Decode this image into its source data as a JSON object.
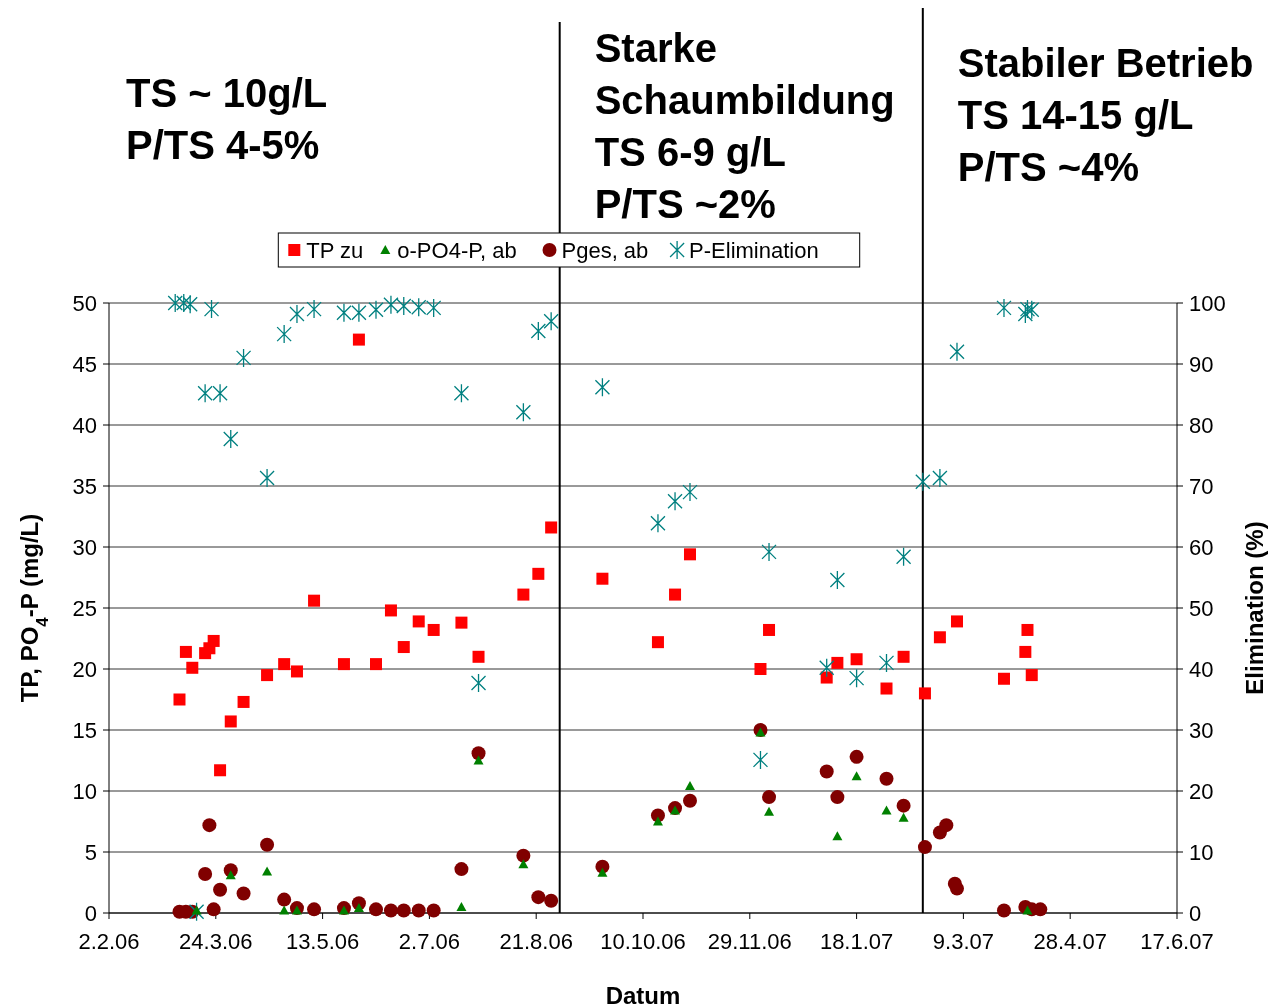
{
  "chart_data": {
    "type": "scatter",
    "xlabel": "Datum",
    "ylabel": "TP, PO$_{4}$-P (mg/L)",
    "y2label": "Elimination (%)",
    "xlim": [
      "2006-02-02",
      "2007-06-17"
    ],
    "xticks": [
      {
        "value": "2006-02-02",
        "label": "2.2.06"
      },
      {
        "value": "2006-03-24",
        "label": "24.3.06"
      },
      {
        "value": "2006-05-13",
        "label": "13.5.06"
      },
      {
        "value": "2006-07-02",
        "label": "2.7.06"
      },
      {
        "value": "2006-08-21",
        "label": "21.8.06"
      },
      {
        "value": "2006-10-10",
        "label": "10.10.06"
      },
      {
        "value": "2006-11-29",
        "label": "29.11.06"
      },
      {
        "value": "2007-01-18",
        "label": "18.1.07"
      },
      {
        "value": "2007-03-09",
        "label": "9.3.07"
      },
      {
        "value": "2007-04-28",
        "label": "28.4.07"
      },
      {
        "value": "2007-06-17",
        "label": "17.6.07"
      }
    ],
    "ylim": [
      0,
      50
    ],
    "yticks": [
      0,
      5,
      10,
      15,
      20,
      25,
      30,
      35,
      40,
      45,
      50
    ],
    "y2lim": [
      0,
      100
    ],
    "y2ticks": [
      0,
      10,
      20,
      30,
      40,
      50,
      60,
      70,
      80,
      90,
      100
    ],
    "grid": "y",
    "legend": "top",
    "ref_lines": [
      {
        "axis": "x",
        "value": "2006-09-01",
        "color": "#000000",
        "line_style": "solid"
      },
      {
        "axis": "x",
        "value": "2007-02-18",
        "color": "#000000",
        "line_style": "solid"
      }
    ],
    "annotations": [
      "TS ~ 10g/L\nP/TS 4-5%",
      "Starke\nSchaumbildung\nTS 6-9 g/L\nP/TS ~2%",
      "Stabiler Betrieb\nTS 14-15 g/L\nP/TS ~4%"
    ],
    "series": [
      {
        "name": "TP zu",
        "color": "#ff0000",
        "marker": "square",
        "x": [
          "2006-03-07",
          "2006-03-10",
          "2006-03-13",
          "2006-03-19",
          "2006-03-21",
          "2006-03-23",
          "2006-03-26",
          "2006-03-31",
          "2006-04-06",
          "2006-04-17",
          "2006-04-25",
          "2006-05-01",
          "2006-05-09",
          "2006-05-23",
          "2006-05-30",
          "2006-06-07",
          "2006-06-14",
          "2006-06-20",
          "2006-06-27",
          "2006-07-04",
          "2006-07-17",
          "2006-07-25",
          "2006-08-15",
          "2006-08-22",
          "2006-08-28",
          "2006-09-21",
          "2006-10-17",
          "2006-10-25",
          "2006-11-01",
          "2006-12-04",
          "2006-12-08",
          "2007-01-04",
          "2007-01-09",
          "2007-01-18",
          "2007-02-01",
          "2007-02-09",
          "2007-02-19",
          "2007-02-26",
          "2007-03-06",
          "2007-03-28",
          "2007-04-07",
          "2007-04-08",
          "2007-04-10"
        ],
        "values": [
          17.5,
          21.4,
          20.1,
          21.3,
          21.7,
          22.3,
          11.7,
          15.7,
          17.3,
          19.5,
          20.4,
          19.8,
          25.6,
          20.4,
          47.0,
          20.4,
          24.8,
          21.8,
          23.9,
          23.2,
          23.8,
          21.0,
          26.1,
          27.8,
          31.6,
          27.4,
          22.2,
          26.1,
          29.4,
          20.0,
          23.2,
          19.3,
          20.5,
          20.8,
          18.4,
          21.0,
          18.0,
          22.6,
          23.9,
          19.2,
          21.4,
          23.2,
          19.5
        ]
      },
      {
        "name": "o-PO4-P, ab",
        "color": "#008000",
        "marker": "triangle",
        "x": [
          "2006-03-15",
          "2006-03-31",
          "2006-04-17",
          "2006-04-25",
          "2006-05-01",
          "2006-05-23",
          "2006-05-30",
          "2006-07-17",
          "2006-07-25",
          "2006-08-15",
          "2006-09-21",
          "2006-10-17",
          "2006-10-25",
          "2006-11-01",
          "2006-12-04",
          "2006-12-08",
          "2007-01-09",
          "2007-01-18",
          "2007-02-01",
          "2007-02-09",
          "2007-04-08"
        ],
        "values": [
          0.2,
          3.1,
          3.4,
          0.2,
          0.2,
          0.2,
          0.4,
          0.5,
          12.5,
          4.0,
          3.3,
          7.5,
          8.4,
          10.4,
          14.8,
          8.3,
          6.3,
          11.2,
          8.4,
          7.8,
          0.2
        ]
      },
      {
        "name": "Pges, ab",
        "color": "#800000",
        "marker": "circle",
        "x": [
          "2006-03-07",
          "2006-03-10",
          "2006-03-13",
          "2006-03-19",
          "2006-03-21",
          "2006-03-23",
          "2006-03-26",
          "2006-03-31",
          "2006-04-06",
          "2006-04-17",
          "2006-04-25",
          "2006-05-01",
          "2006-05-09",
          "2006-05-23",
          "2006-05-30",
          "2006-06-07",
          "2006-06-14",
          "2006-06-20",
          "2006-06-27",
          "2006-07-04",
          "2006-07-17",
          "2006-07-25",
          "2006-08-15",
          "2006-08-22",
          "2006-08-28",
          "2006-09-21",
          "2006-10-17",
          "2006-10-25",
          "2006-11-01",
          "2006-12-04",
          "2006-12-08",
          "2007-01-04",
          "2007-01-09",
          "2007-01-18",
          "2007-02-01",
          "2007-02-09",
          "2007-02-19",
          "2007-02-26",
          "2007-03-01",
          "2007-03-05",
          "2007-03-06",
          "2007-03-28",
          "2007-04-07",
          "2007-04-10",
          "2007-04-14"
        ],
        "values": [
          0.1,
          0.1,
          0.1,
          3.2,
          7.2,
          0.3,
          1.9,
          3.5,
          1.6,
          5.6,
          1.1,
          0.4,
          0.3,
          0.4,
          0.8,
          0.3,
          0.2,
          0.2,
          0.2,
          0.2,
          3.6,
          13.1,
          4.7,
          1.3,
          1.0,
          3.8,
          8.0,
          8.6,
          9.2,
          15.0,
          9.5,
          11.6,
          9.5,
          12.8,
          11.0,
          8.8,
          5.4,
          6.6,
          7.2,
          2.4,
          2.0,
          0.2,
          0.5,
          0.3,
          0.3
        ]
      },
      {
        "name": "P-Elimination",
        "color": "#008080",
        "marker": "cross",
        "axis": "y2",
        "x": [
          "2006-03-05",
          "2006-03-09",
          "2006-03-12",
          "2006-03-15",
          "2006-03-19",
          "2006-03-22",
          "2006-03-26",
          "2006-03-31",
          "2006-04-06",
          "2006-04-17",
          "2006-04-25",
          "2006-05-01",
          "2006-05-09",
          "2006-05-23",
          "2006-05-30",
          "2006-06-07",
          "2006-06-14",
          "2006-06-20",
          "2006-06-27",
          "2006-07-04",
          "2006-07-17",
          "2006-07-25",
          "2006-08-15",
          "2006-08-22",
          "2006-08-28",
          "2006-09-21",
          "2006-10-17",
          "2006-10-25",
          "2006-11-01",
          "2006-12-04",
          "2006-12-08",
          "2007-01-04",
          "2007-01-09",
          "2007-01-18",
          "2007-02-01",
          "2007-02-09",
          "2007-02-18",
          "2007-02-26",
          "2007-03-06",
          "2007-03-28",
          "2007-04-07",
          "2007-04-08",
          "2007-04-10"
        ],
        "values": [
          100,
          100,
          99.8,
          0.2,
          85.2,
          99,
          85.2,
          77.7,
          91.0,
          71.3,
          94.9,
          98.2,
          99,
          98.4,
          98.4,
          98.9,
          99.7,
          99.5,
          99.3,
          99.2,
          85.2,
          37.7,
          82.1,
          95.4,
          97.0,
          86.2,
          63.9,
          67.5,
          69.0,
          25.1,
          59.2,
          40.2,
          54.6,
          38.5,
          41.0,
          58.4,
          70.7,
          71.3,
          92.0,
          99.2,
          98.2,
          99.0,
          98.9
        ]
      }
    ]
  }
}
